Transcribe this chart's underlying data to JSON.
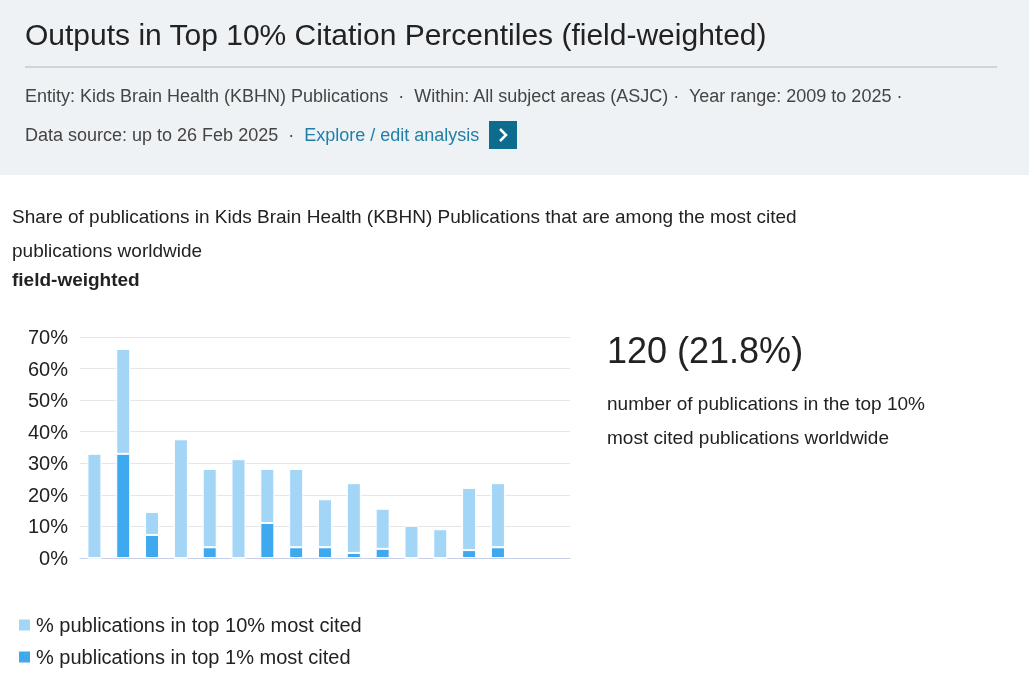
{
  "chart_data": {
    "type": "bar",
    "title": "Outputs in Top 10% Citation Percentiles (field-weighted)",
    "subtitle": "Entity: Kids Brain Health (KBHN) Publications  ·  Within: All subject areas (ASJC) ·  Year range: 2009 to 2025 ·",
    "annotations": [
      "Data source: up to 26 Feb 2025  ·",
      "Explore / edit analysis",
      "Share of publications in Kids Brain Health (KBHN) Publications that are among the most cited publications worldwide",
      "field-weighted",
      "120 (21.8%)",
      "number of publications in the top 10% most cited publications worldwide"
    ],
    "categories": [
      null,
      null,
      null,
      null,
      null,
      null,
      null,
      null,
      null,
      null,
      null,
      null,
      null,
      null,
      null,
      null,
      null
    ],
    "stacked": true,
    "series": [
      {
        "name": "% publications in top 1% most cited",
        "color": "#3ea9ef",
        "values": [
          0,
          33,
          7.3,
          0,
          3.4,
          0,
          11.1,
          3.4,
          3.4,
          1.6,
          2.9,
          0,
          0,
          2.5,
          3.4,
          null,
          null
        ]
      },
      {
        "name": "% publications in top 10% most cited",
        "color": "#a3d5f7",
        "values": [
          33,
          33.2,
          7.3,
          37.6,
          24.8,
          31.3,
          17.1,
          24.8,
          15.2,
          22.1,
          12.7,
          10.2,
          9.1,
          19.7,
          20.3,
          null,
          null
        ]
      }
    ],
    "ylim": [
      0,
      70
    ],
    "yticks": [
      {
        "value": 0,
        "label": "0%"
      },
      {
        "value": 10,
        "label": "10%"
      },
      {
        "value": 20,
        "label": "20%"
      },
      {
        "value": 30,
        "label": "30%"
      },
      {
        "value": 40,
        "label": "40%"
      },
      {
        "value": 50,
        "label": "50%"
      },
      {
        "value": 60,
        "label": "60%"
      },
      {
        "value": 70,
        "label": "70%"
      }
    ],
    "grid": "y",
    "legend": "bottom left"
  }
}
